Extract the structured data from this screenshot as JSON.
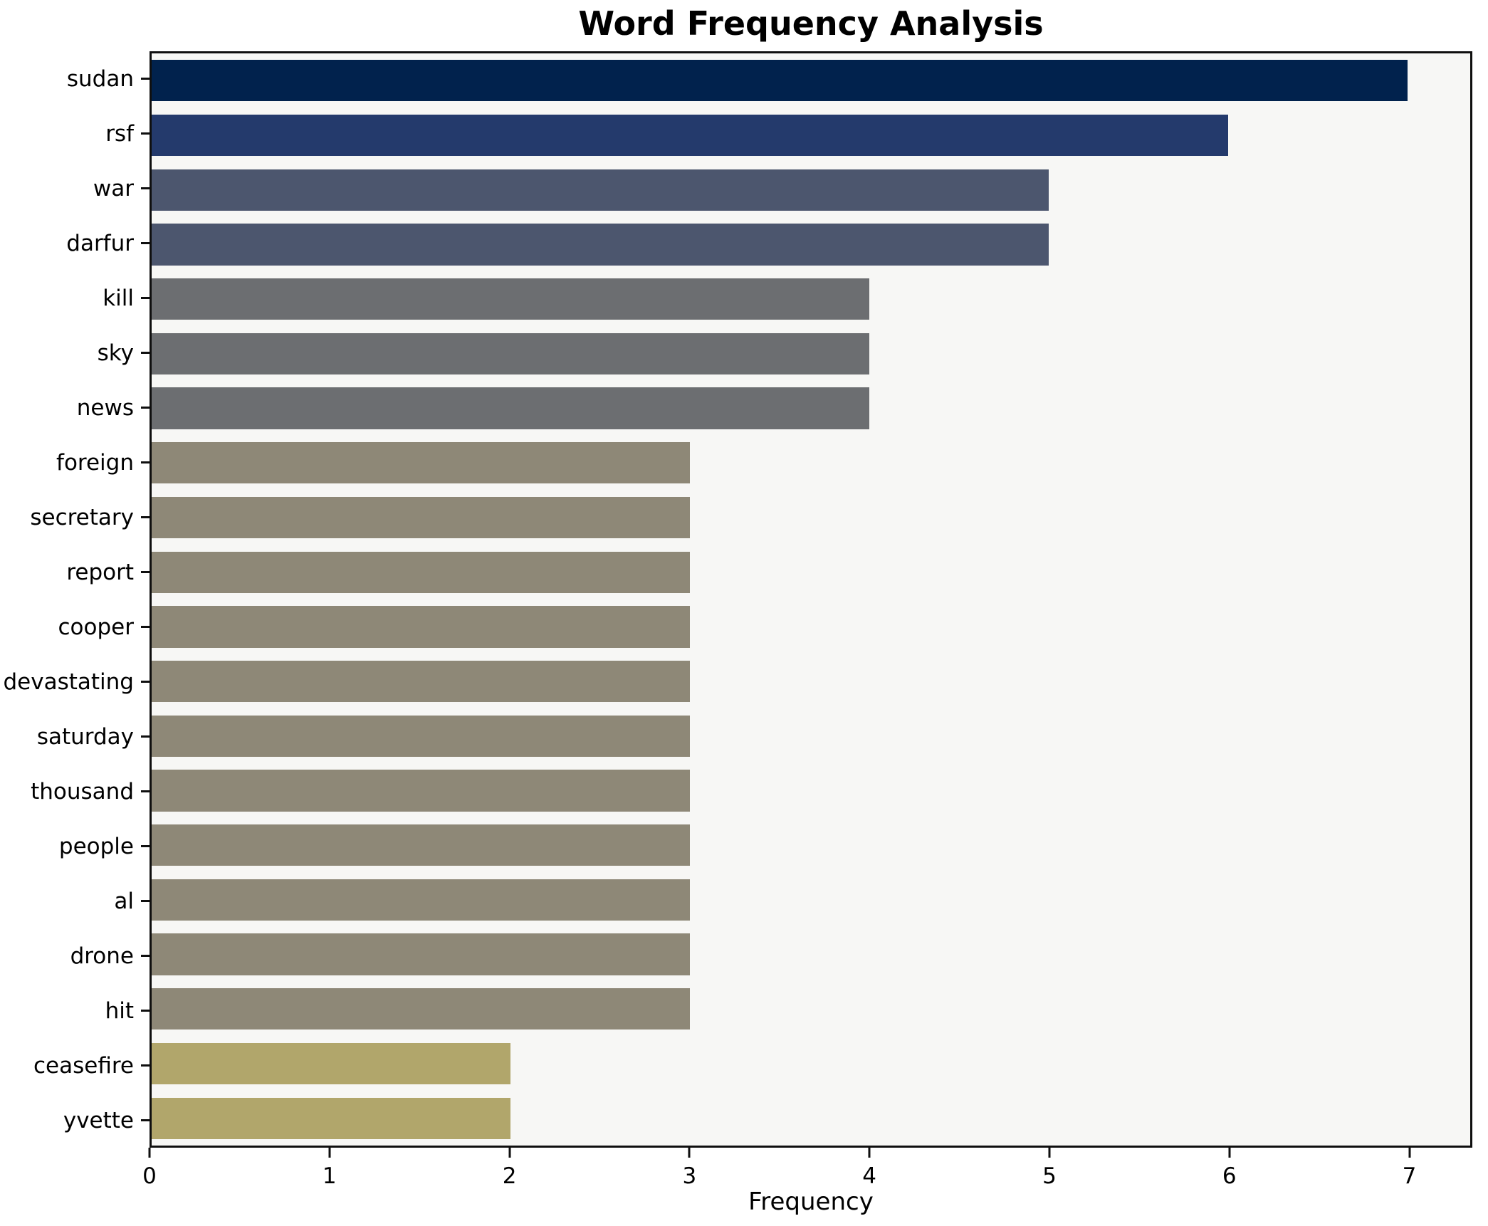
{
  "chart_data": {
    "type": "bar",
    "orientation": "horizontal",
    "title": "Word Frequency Analysis",
    "xlabel": "Frequency",
    "ylabel": "",
    "categories": [
      "sudan",
      "rsf",
      "war",
      "darfur",
      "kill",
      "sky",
      "news",
      "foreign",
      "secretary",
      "report",
      "cooper",
      "devastating",
      "saturday",
      "thousand",
      "people",
      "al",
      "drone",
      "hit",
      "ceasefire",
      "yvette"
    ],
    "values": [
      7,
      6,
      5,
      5,
      4,
      4,
      4,
      3,
      3,
      3,
      3,
      3,
      3,
      3,
      3,
      3,
      3,
      3,
      2,
      2
    ],
    "colors": [
      "#01224d",
      "#243a6c",
      "#4c566e",
      "#4c566e",
      "#6c6e71",
      "#6c6e71",
      "#6c6e71",
      "#8e8877",
      "#8e8877",
      "#8e8877",
      "#8e8877",
      "#8e8877",
      "#8e8877",
      "#8e8877",
      "#8e8877",
      "#8e8877",
      "#8e8877",
      "#8e8877",
      "#b1a66b",
      "#b1a66b"
    ],
    "xticks": [
      "0",
      "1",
      "2",
      "3",
      "4",
      "5",
      "6",
      "7"
    ],
    "xlim": [
      0,
      7.35
    ],
    "grid": false,
    "legend": false,
    "plot_background": "#f7f7f5",
    "figure_background": "#ffffff",
    "bar_height_fraction": 0.76
  }
}
